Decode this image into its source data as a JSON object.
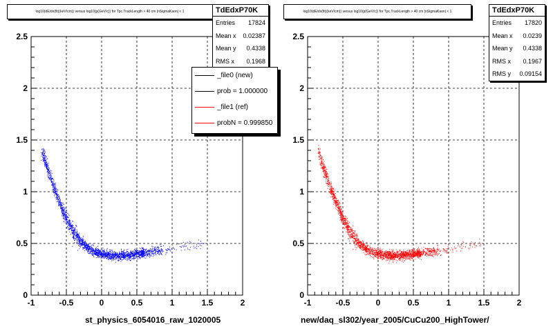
{
  "chart_data": [
    {
      "type": "scatter",
      "title": "log10(dE/dx(fit)(keV/cm)) versus log10(p(GeV/c)) for Tpc.TrackLength > 40 cm |nSigmaKaon| < 1",
      "xlabel": "st_physics_6054016_raw_1020005",
      "ylabel": "",
      "xlim": [
        -1,
        2
      ],
      "ylim": [
        0,
        2.5
      ],
      "x_ticks": [
        "-1",
        "-0.5",
        "0",
        "0.5",
        "1",
        "1.5",
        "2"
      ],
      "y_ticks": [
        "0",
        "0.5",
        "1",
        "1.5",
        "2",
        "2.5"
      ],
      "grid": true,
      "color": "#0000ff",
      "stats": {
        "name": "TdEdxP70K",
        "rows": [
          {
            "label": "Entries",
            "value": "17824"
          },
          {
            "label": "Mean x",
            "value": "0.02387"
          },
          {
            "label": "Mean y",
            "value": "0.4338"
          },
          {
            "label": "RMS x",
            "value": "0.1968"
          }
        ]
      },
      "legend": [
        {
          "label": "_file0 (new)",
          "color": "#000000"
        },
        {
          "label": "prob = 1.000000",
          "color": "#000000"
        },
        {
          "label": "_file1 (ref)",
          "color": "#ff0000"
        },
        {
          "label": "probN = 0.999850",
          "color": "#ff0000"
        }
      ],
      "band": [
        {
          "x": -0.88,
          "y": 1.45
        },
        {
          "x": -0.8,
          "y": 1.28
        },
        {
          "x": -0.7,
          "y": 1.08
        },
        {
          "x": -0.6,
          "y": 0.9
        },
        {
          "x": -0.5,
          "y": 0.74
        },
        {
          "x": -0.4,
          "y": 0.61
        },
        {
          "x": -0.3,
          "y": 0.52
        },
        {
          "x": -0.2,
          "y": 0.46
        },
        {
          "x": -0.1,
          "y": 0.42
        },
        {
          "x": 0.0,
          "y": 0.4
        },
        {
          "x": 0.1,
          "y": 0.39
        },
        {
          "x": 0.2,
          "y": 0.385
        },
        {
          "x": 0.3,
          "y": 0.385
        },
        {
          "x": 0.4,
          "y": 0.39
        },
        {
          "x": 0.5,
          "y": 0.4
        },
        {
          "x": 0.6,
          "y": 0.41
        },
        {
          "x": 0.8,
          "y": 0.43
        },
        {
          "x": 1.1,
          "y": 0.46
        },
        {
          "x": 1.4,
          "y": 0.5
        }
      ]
    },
    {
      "type": "scatter",
      "title": "log10(dE/dx(fit)(keV/cm)) versus log10(p(GeV/c)) for Tpc.TrackLength > 40 cm |nSigmaKaon| < 1",
      "xlabel": "new/daq_sl302/year_2005/CuCu200_HighTower/",
      "ylabel": "",
      "xlim": [
        -1,
        2
      ],
      "ylim": [
        0,
        2.5
      ],
      "x_ticks": [
        "-1",
        "-0.5",
        "0",
        "0.5",
        "1",
        "1.5",
        "2"
      ],
      "y_ticks": [
        "0",
        "0.5",
        "1",
        "1.5",
        "2",
        "2.5"
      ],
      "grid": true,
      "color": "#ff0000",
      "stats": {
        "name": "TdEdxP70K",
        "rows": [
          {
            "label": "Entries",
            "value": "17820"
          },
          {
            "label": "Mean x",
            "value": "0.0239"
          },
          {
            "label": "Mean y",
            "value": "0.4338"
          },
          {
            "label": "RMS x",
            "value": "0.1967"
          },
          {
            "label": "RMS y",
            "value": "0.09154"
          }
        ]
      },
      "band": [
        {
          "x": -0.88,
          "y": 1.45
        },
        {
          "x": -0.8,
          "y": 1.28
        },
        {
          "x": -0.7,
          "y": 1.08
        },
        {
          "x": -0.6,
          "y": 0.9
        },
        {
          "x": -0.5,
          "y": 0.74
        },
        {
          "x": -0.4,
          "y": 0.61
        },
        {
          "x": -0.3,
          "y": 0.52
        },
        {
          "x": -0.2,
          "y": 0.46
        },
        {
          "x": -0.1,
          "y": 0.42
        },
        {
          "x": 0.0,
          "y": 0.4
        },
        {
          "x": 0.1,
          "y": 0.39
        },
        {
          "x": 0.2,
          "y": 0.385
        },
        {
          "x": 0.3,
          "y": 0.385
        },
        {
          "x": 0.4,
          "y": 0.39
        },
        {
          "x": 0.5,
          "y": 0.4
        },
        {
          "x": 0.6,
          "y": 0.41
        },
        {
          "x": 0.8,
          "y": 0.43
        },
        {
          "x": 1.1,
          "y": 0.46
        },
        {
          "x": 1.4,
          "y": 0.5
        }
      ]
    }
  ]
}
